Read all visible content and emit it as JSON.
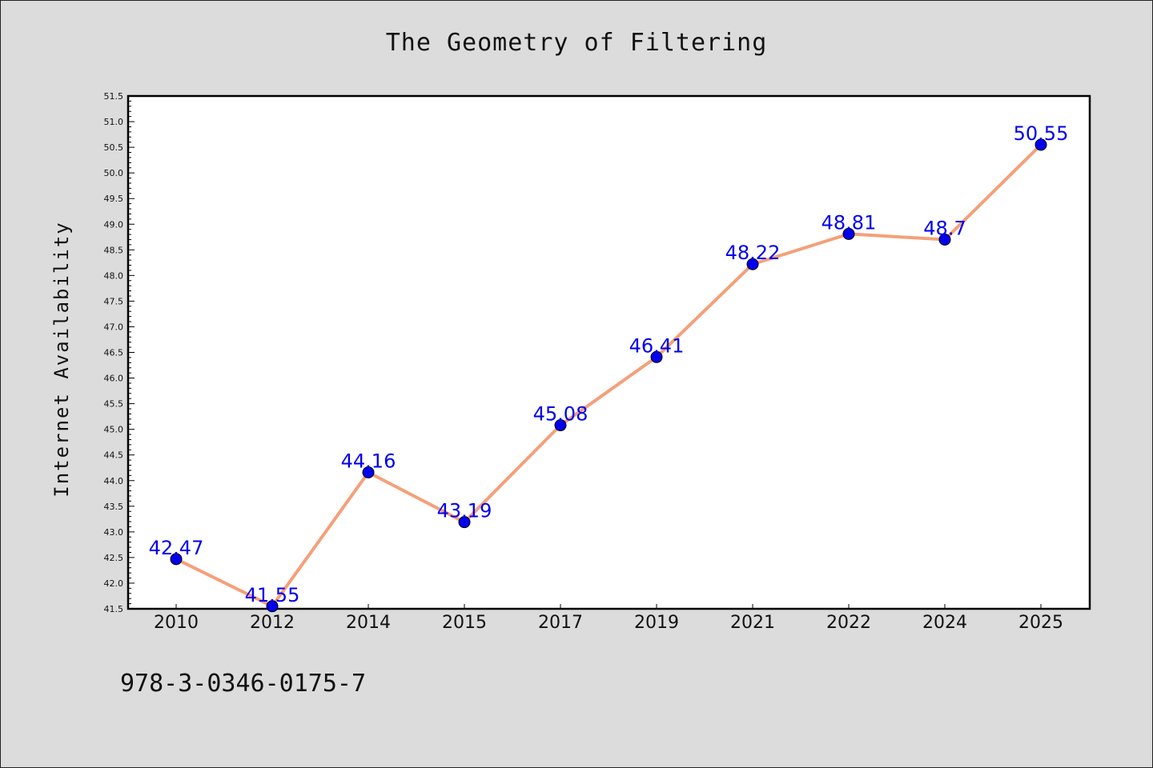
{
  "chart_data": {
    "type": "line",
    "title": "The Geometry of Filtering",
    "xlabel": "",
    "ylabel": "Internet Availability",
    "categories": [
      "2010",
      "2012",
      "2014",
      "2015",
      "2017",
      "2019",
      "2021",
      "2022",
      "2024",
      "2025"
    ],
    "series": [
      {
        "values": [
          42.47,
          41.55,
          44.16,
          43.19,
          45.08,
          46.41,
          48.22,
          48.81,
          48.7,
          50.55
        ],
        "data_labels": [
          "42.47",
          "41.55",
          "44.16",
          "43.19",
          "45.08",
          "46.41",
          "48.22",
          "48.81",
          "48.7",
          "50.55"
        ],
        "line_color": "#f4a07a",
        "marker_color": "#0000ee"
      }
    ],
    "ylim": [
      41.5,
      51.5
    ],
    "yticks": [
      "41.5",
      "42.0",
      "42.5",
      "43.0",
      "43.5",
      "44.0",
      "44.5",
      "45.0",
      "45.5",
      "46.0",
      "46.5",
      "47.0",
      "47.5",
      "48.0",
      "48.5",
      "49.0",
      "49.5",
      "50.0",
      "50.5",
      "51.0",
      "51.5"
    ],
    "grid": false,
    "legend": "none"
  },
  "footer": {
    "isbn": "978-3-0346-0175-7"
  },
  "colors": {
    "background": "#dcdcdc",
    "plot_area": "#ffffff",
    "label": "#0000ee",
    "line": "#f4a07a"
  }
}
